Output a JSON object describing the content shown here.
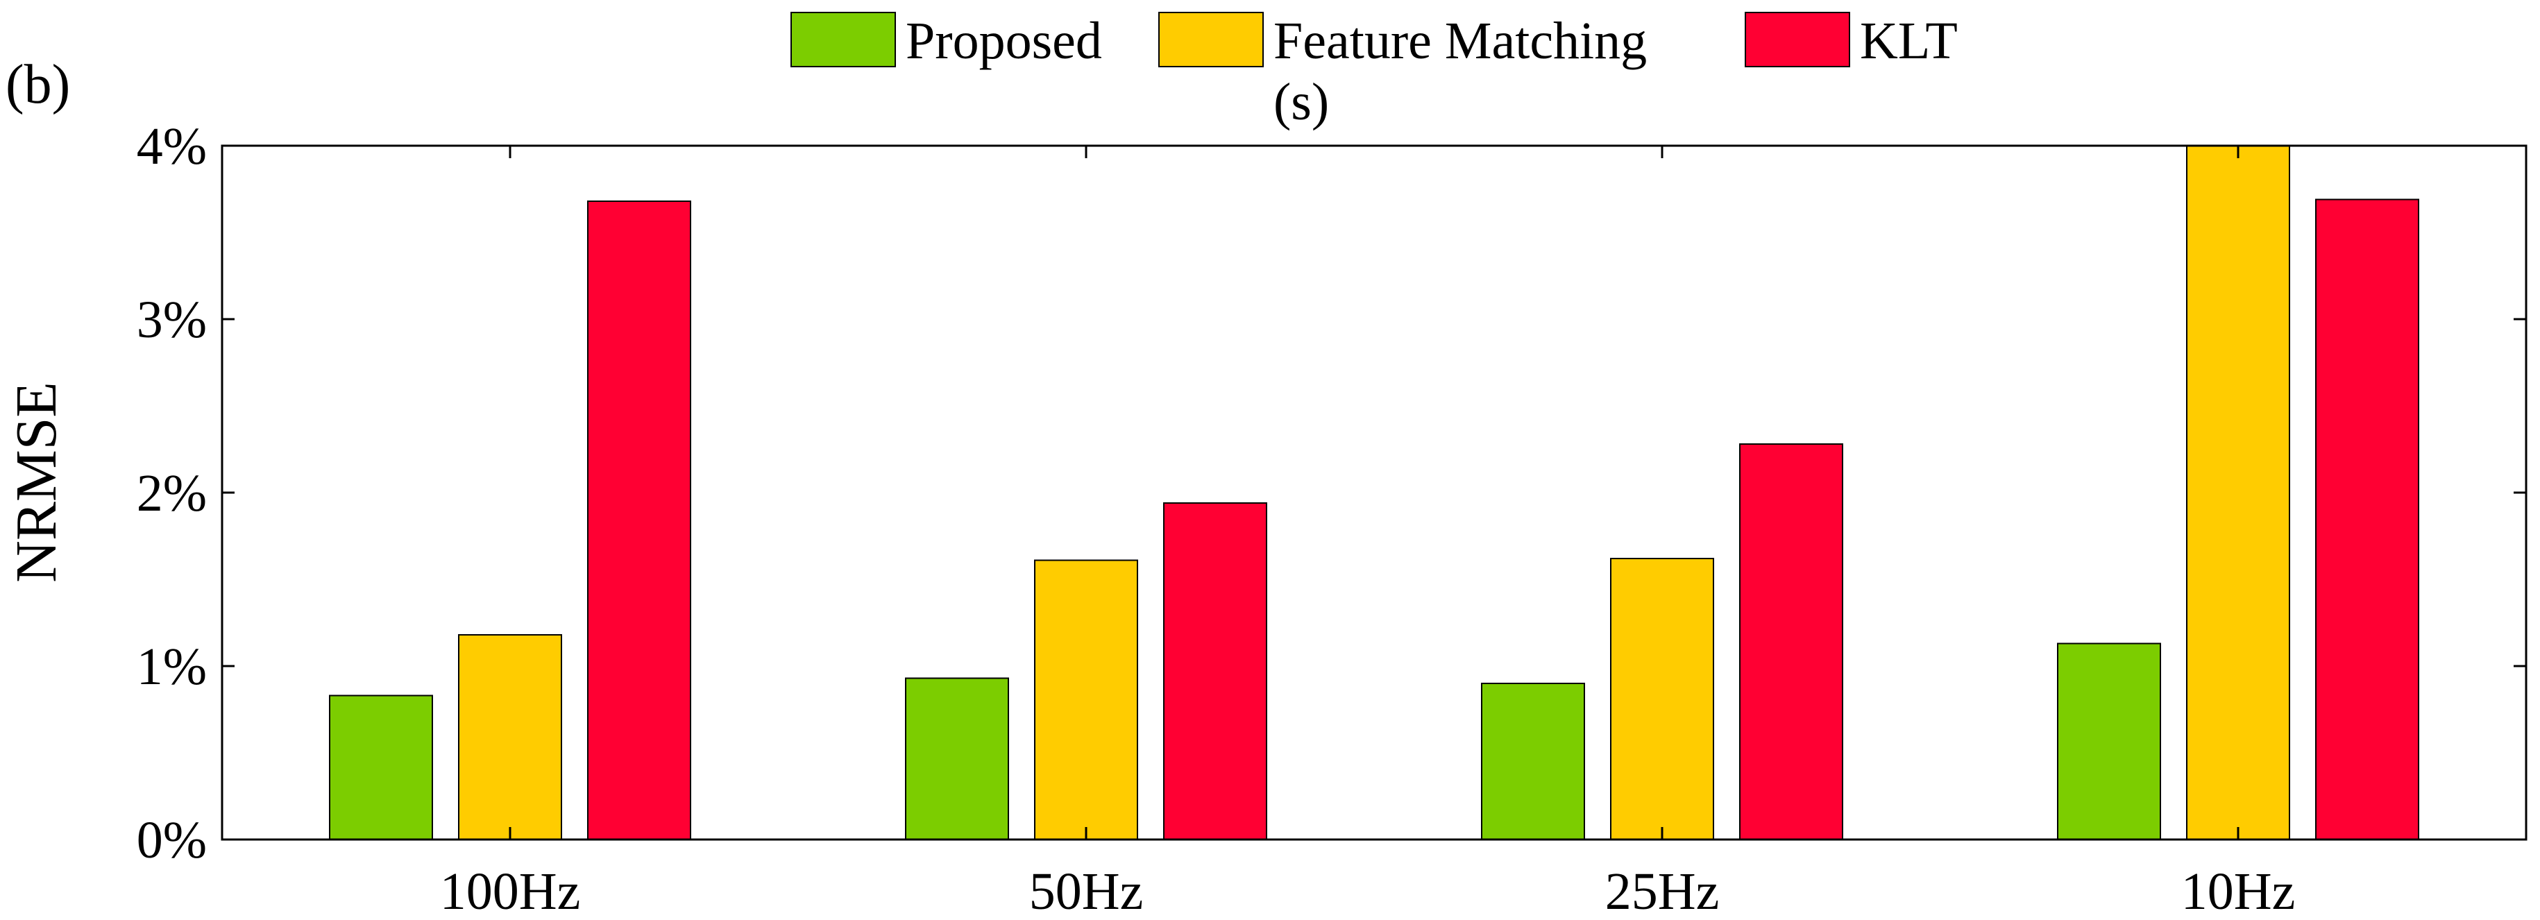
{
  "chart_data": {
    "type": "bar",
    "panel_label": "(b)",
    "ylabel": "NRMSE",
    "xlabel": "",
    "categories": [
      "100Hz",
      "50Hz",
      "25Hz",
      "10Hz"
    ],
    "series": [
      {
        "name": "Proposed",
        "color": "#7ccd00",
        "values": [
          0.83,
          0.93,
          0.9,
          1.13
        ]
      },
      {
        "name": "Feature Matching\n(s)",
        "color": "#ffcc00",
        "values": [
          1.18,
          1.61,
          1.62,
          4.0
        ]
      },
      {
        "name": "KLT",
        "color": "#ff0033",
        "values": [
          3.68,
          1.94,
          2.28,
          3.69
        ]
      }
    ],
    "ylim": [
      0,
      4
    ],
    "yticks": [
      "0%",
      "1%",
      "2%",
      "3%",
      "4%"
    ],
    "grid": false,
    "legend_position": "top-center"
  }
}
